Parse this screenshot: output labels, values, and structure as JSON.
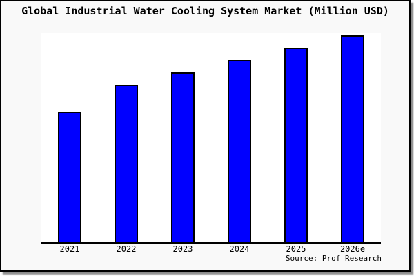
{
  "chart_data": {
    "type": "bar",
    "title": "Global Industrial Water Cooling System Market (Million USD)",
    "categories": [
      "2021",
      "2022",
      "2023",
      "2024",
      "2025",
      "2026e"
    ],
    "values": [
      63,
      76,
      82,
      88,
      94,
      100
    ],
    "values_note": "No y-axis scale or data labels shown; values are relative bar heights normalized to the tallest bar (2026e) = 100",
    "xlabel": "",
    "ylabel": "",
    "ylim": [
      0,
      100
    ],
    "grid": false,
    "legend": false,
    "bar_fill": "#0000ff",
    "bar_border": "#000000"
  },
  "source_note": "Source: Prof Research",
  "colors": {
    "canvas_background": "#f9f9f9",
    "plot_background": "#ffffff",
    "frame_border": "#000000",
    "axis_line": "#000000",
    "title_text": "#000000",
    "bar_fill": "#0000ff"
  }
}
